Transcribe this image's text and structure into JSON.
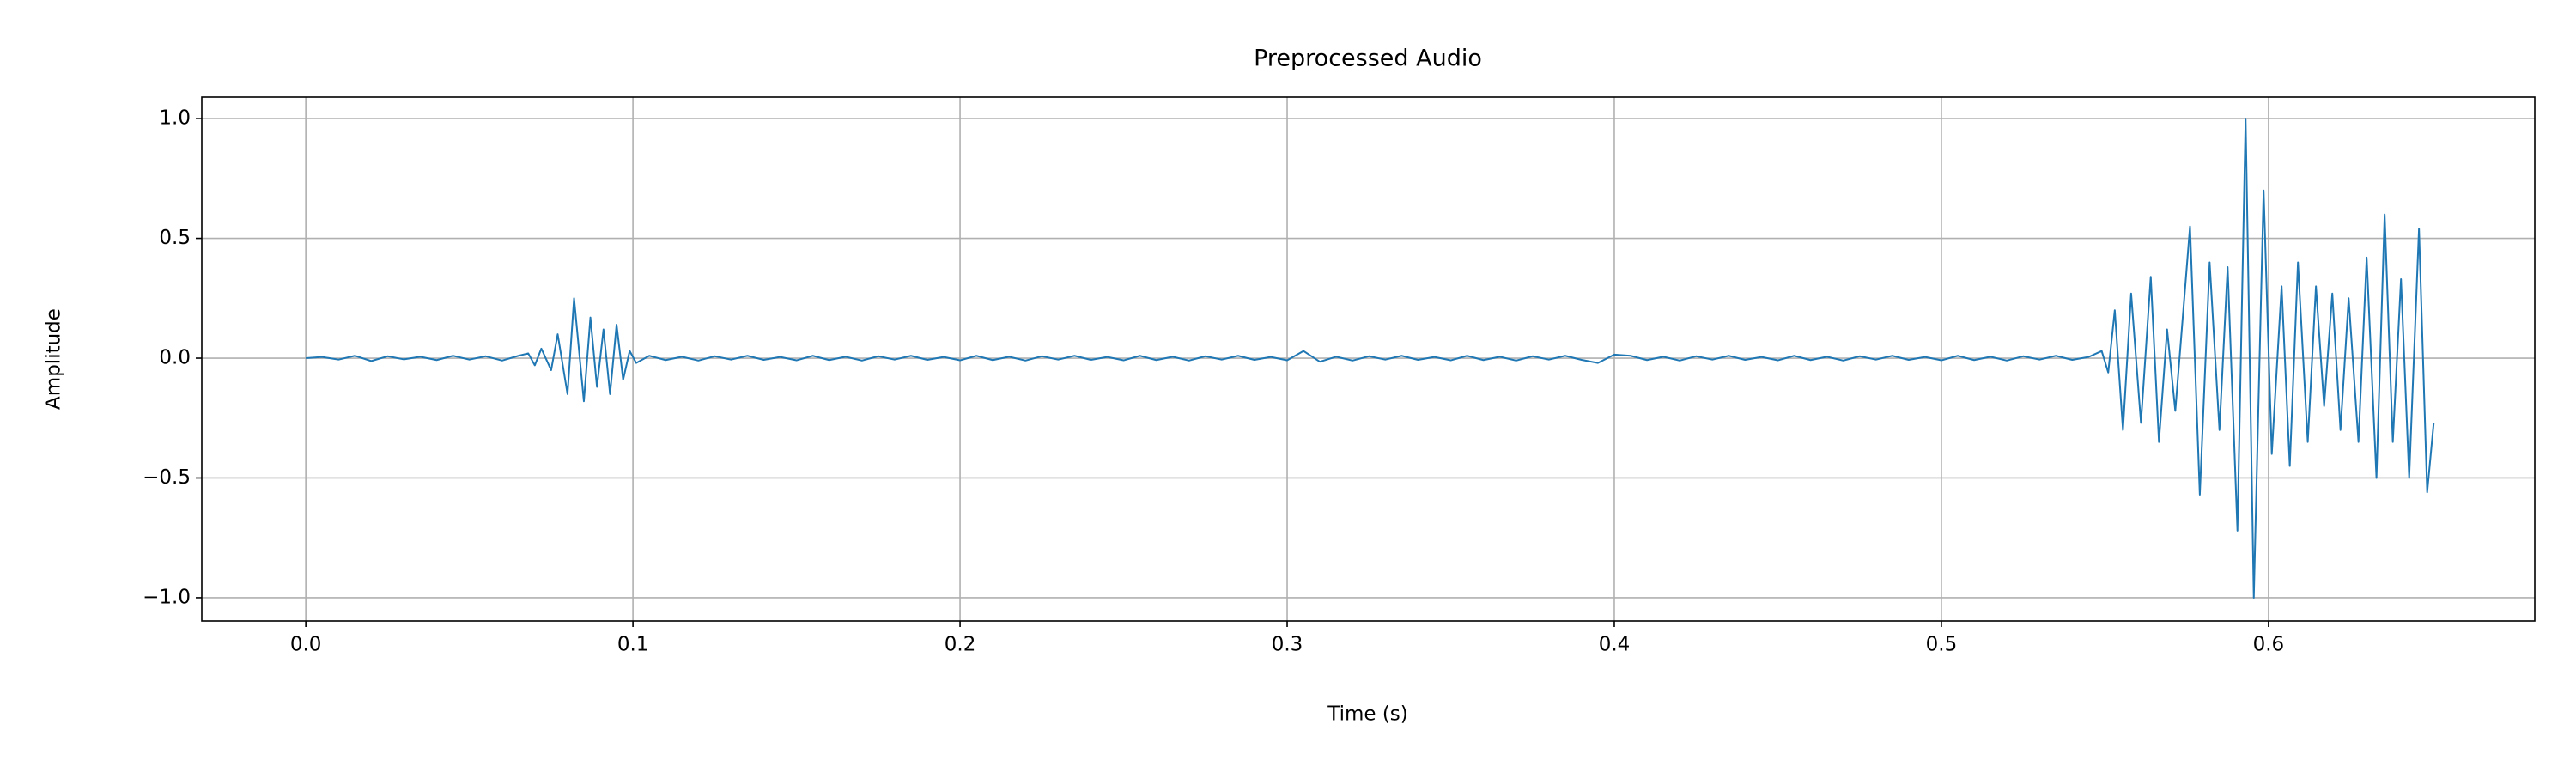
{
  "chart_data": {
    "type": "line",
    "title": "Preprocessed Audio",
    "x_label": "Time (s)",
    "y_label": "Amplitude",
    "x": [
      0,
      0.005,
      0.01,
      0.015,
      0.02,
      0.025,
      0.03,
      0.035,
      0.04,
      0.045,
      0.05,
      0.055,
      0.06,
      0.065,
      0.068,
      0.07,
      0.072,
      0.075,
      0.077,
      0.08,
      0.082,
      0.085,
      0.087,
      0.089,
      0.091,
      0.093,
      0.095,
      0.097,
      0.099,
      0.101,
      0.105,
      0.11,
      0.115,
      0.12,
      0.125,
      0.13,
      0.135,
      0.14,
      0.145,
      0.15,
      0.155,
      0.16,
      0.165,
      0.17,
      0.175,
      0.18,
      0.185,
      0.19,
      0.195,
      0.2,
      0.205,
      0.21,
      0.215,
      0.22,
      0.225,
      0.23,
      0.235,
      0.24,
      0.245,
      0.25,
      0.255,
      0.26,
      0.265,
      0.27,
      0.275,
      0.28,
      0.285,
      0.29,
      0.295,
      0.3,
      0.305,
      0.31,
      0.315,
      0.32,
      0.325,
      0.33,
      0.335,
      0.34,
      0.345,
      0.35,
      0.355,
      0.36,
      0.365,
      0.37,
      0.375,
      0.38,
      0.385,
      0.39,
      0.395,
      0.4,
      0.405,
      0.41,
      0.415,
      0.42,
      0.425,
      0.43,
      0.435,
      0.44,
      0.445,
      0.45,
      0.455,
      0.46,
      0.465,
      0.47,
      0.475,
      0.48,
      0.485,
      0.49,
      0.495,
      0.5,
      0.505,
      0.51,
      0.515,
      0.52,
      0.525,
      0.53,
      0.535,
      0.54,
      0.545,
      0.549,
      0.551,
      0.553,
      0.5555,
      0.558,
      0.561,
      0.564,
      0.5665,
      0.569,
      0.5715,
      0.576,
      0.579,
      0.582,
      0.585,
      0.5875,
      0.5905,
      0.593,
      0.5955,
      0.5985,
      0.601,
      0.604,
      0.6065,
      0.609,
      0.612,
      0.6145,
      0.617,
      0.6195,
      0.622,
      0.6245,
      0.6275,
      0.63,
      0.633,
      0.6355,
      0.638,
      0.6405,
      0.643,
      0.646,
      0.6485,
      0.6505
    ],
    "series": [
      {
        "name": "Amplitude",
        "color": "#1f77b4",
        "values": [
          0,
          0.005,
          -0.006,
          0.01,
          -0.012,
          0.008,
          -0.005,
          0.006,
          -0.008,
          0.01,
          -0.006,
          0.008,
          -0.01,
          0.01,
          0.02,
          -0.03,
          0.04,
          -0.05,
          0.1,
          -0.15,
          0.25,
          -0.18,
          0.17,
          -0.12,
          0.12,
          -0.15,
          0.14,
          -0.09,
          0.03,
          -0.02,
          0.01,
          -0.008,
          0.006,
          -0.01,
          0.008,
          -0.006,
          0.01,
          -0.007,
          0.005,
          -0.009,
          0.01,
          -0.008,
          0.006,
          -0.01,
          0.008,
          -0.006,
          0.01,
          -0.007,
          0.005,
          -0.009,
          0.01,
          -0.008,
          0.006,
          -0.01,
          0.008,
          -0.006,
          0.01,
          -0.007,
          0.005,
          -0.009,
          0.01,
          -0.008,
          0.006,
          -0.01,
          0.008,
          -0.006,
          0.01,
          -0.007,
          0.005,
          -0.009,
          0.03,
          -0.015,
          0.006,
          -0.01,
          0.008,
          -0.006,
          0.01,
          -0.007,
          0.005,
          -0.009,
          0.01,
          -0.008,
          0.006,
          -0.01,
          0.008,
          -0.006,
          0.01,
          -0.007,
          -0.02,
          0.015,
          0.01,
          -0.008,
          0.006,
          -0.01,
          0.008,
          -0.006,
          0.01,
          -0.007,
          0.005,
          -0.009,
          0.01,
          -0.008,
          0.006,
          -0.01,
          0.008,
          -0.006,
          0.01,
          -0.007,
          0.005,
          -0.009,
          0.01,
          -0.008,
          0.006,
          -0.01,
          0.008,
          -0.006,
          0.01,
          -0.007,
          0.005,
          0.03,
          -0.06,
          0.2,
          -0.3,
          0.27,
          -0.27,
          0.34,
          -0.35,
          0.12,
          -0.22,
          0.55,
          -0.57,
          0.4,
          -0.3,
          0.38,
          -0.72,
          1.0,
          -1.0,
          0.7,
          -0.4,
          0.3,
          -0.45,
          0.4,
          -0.35,
          0.3,
          -0.2,
          0.27,
          -0.3,
          0.25,
          -0.35,
          0.42,
          -0.5,
          0.6,
          -0.35,
          0.33,
          -0.5,
          0.54,
          -0.56,
          -0.27
        ]
      }
    ],
    "xlim": [
      -0.0318,
      0.6814
    ],
    "ylim": [
      -1.097,
      1.09
    ],
    "xticks": [
      {
        "value": 0,
        "label": "0.0"
      },
      0.1,
      0.2,
      0.3,
      0.4,
      0.5,
      0.6
    ],
    "yticks": [
      {
        "value": -1,
        "label": "−1.0"
      },
      {
        "value": -0.5,
        "label": "−0.5"
      },
      {
        "value": 0,
        "label": "0.0"
      },
      0.5,
      {
        "value": 1,
        "label": "1.0"
      }
    ],
    "grid": true
  }
}
